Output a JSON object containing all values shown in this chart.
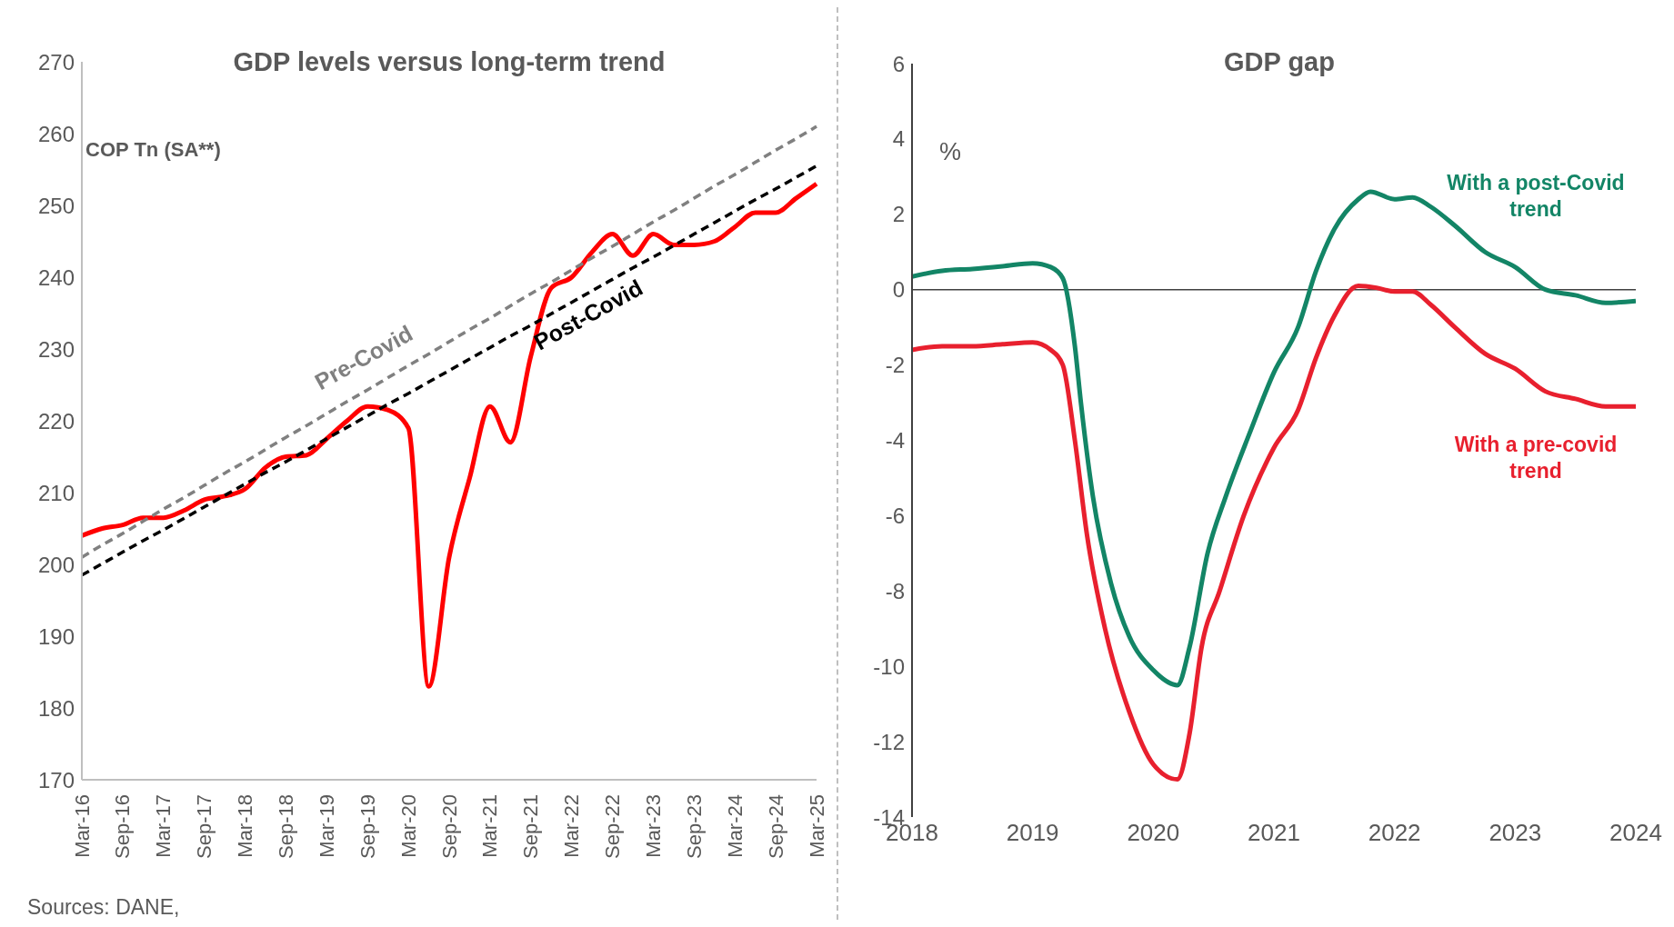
{
  "chart_data": [
    {
      "type": "line",
      "title": "GDP levels versus long-term trend",
      "ylabel": "COP Tn (SA**)",
      "categories": [
        "Mar-16",
        null,
        "Sep-16",
        null,
        "Mar-17",
        null,
        "Sep-17",
        null,
        "Mar-18",
        null,
        "Sep-18",
        null,
        "Mar-19",
        null,
        "Sep-19",
        null,
        "Mar-20",
        null,
        "Sep-20",
        null,
        "Mar-21",
        null,
        "Sep-21",
        null,
        "Mar-22",
        null,
        "Sep-22",
        null,
        "Mar-23",
        null,
        "Sep-23",
        null,
        "Mar-24",
        null,
        "Sep-24",
        null,
        "Mar-25"
      ],
      "series": [
        {
          "color": "#ff0000",
          "values": [
            204,
            205,
            205.5,
            206.5,
            206.5,
            207.5,
            209,
            209.5,
            210.5,
            213.5,
            215,
            215.2,
            217.5,
            220,
            222,
            221.5,
            219,
            183,
            201,
            212,
            222,
            217,
            229,
            238.5,
            240,
            243.5,
            246,
            243,
            246,
            244.5,
            244.5,
            245,
            247,
            249,
            249,
            251,
            253
          ]
        },
        {
          "name": "Pre-Covid",
          "color": "#808080",
          "line_style": "dashed",
          "values": [
            201,
            202.7,
            204.3,
            206,
            207.7,
            209.3,
            211,
            212.7,
            214.3,
            216,
            217.7,
            219.3,
            221,
            222.7,
            224.3,
            226,
            227.7,
            229.3,
            231,
            232.7,
            234.3,
            236,
            237.7,
            239.3,
            241,
            242.7,
            244.3,
            246,
            247.7,
            249.3,
            251,
            252.7,
            254.3,
            256,
            257.7,
            259.3,
            261
          ]
        },
        {
          "name": "Post-Covid",
          "color": "#000000",
          "line_style": "dashed",
          "values": [
            198.5,
            200.1,
            201.7,
            203.3,
            204.8,
            206.4,
            208,
            209.6,
            211.2,
            212.8,
            214.3,
            215.9,
            217.5,
            219.1,
            220.7,
            222.3,
            223.8,
            225.4,
            227,
            228.6,
            230.2,
            231.8,
            233.3,
            234.9,
            236.5,
            238.1,
            239.7,
            241.3,
            242.8,
            244.4,
            246,
            247.6,
            249.2,
            250.8,
            252.3,
            253.9,
            255.5
          ]
        }
      ],
      "ylim": [
        170,
        270
      ],
      "yticks": [
        170,
        180,
        190,
        200,
        210,
        220,
        230,
        240,
        250,
        260,
        270
      ],
      "grid": false,
      "annotations": [
        "Sources: DANE,"
      ]
    },
    {
      "type": "line",
      "title": "GDP gap",
      "ylabel": "%",
      "xlim": [
        2018,
        2024
      ],
      "xticks": [
        2018,
        2019,
        2020,
        2021,
        2022,
        2023,
        2024
      ],
      "ylim": [
        -14,
        6
      ],
      "yticks": [
        -14,
        -12,
        -10,
        -8,
        -6,
        -4,
        -2,
        0,
        2,
        4,
        6
      ],
      "grid": false,
      "ref_lines": [
        {
          "axis": "y",
          "value": 0,
          "color": "#404040"
        }
      ],
      "series": [
        {
          "name": "With a post-Covid trend",
          "color": "#138566",
          "x": [
            2018,
            2018.25,
            2018.5,
            2018.75,
            2019,
            2019.15,
            2019.25,
            2019.35,
            2019.4,
            2019.5,
            2019.65,
            2019.8,
            2020,
            2020.2,
            2020.3,
            2020.45,
            2020.6,
            2020.8,
            2021,
            2021.2,
            2021.35,
            2021.5,
            2021.7,
            2021.8,
            2022,
            2022.15,
            2022.3,
            2022.5,
            2022.75,
            2023,
            2023.25,
            2023.5,
            2023.75,
            2024
          ],
          "values": [
            0.35,
            0.5,
            0.55,
            0.62,
            0.7,
            0.6,
            0.3,
            -1.5,
            -3,
            -5.5,
            -7.8,
            -9.2,
            -10.1,
            -10.5,
            -9.5,
            -7,
            -5.5,
            -3.8,
            -2.2,
            -1,
            0.5,
            1.6,
            2.4,
            2.6,
            2.4,
            2.45,
            2.2,
            1.7,
            1,
            0.6,
            0,
            -0.15,
            -0.35,
            -0.3
          ]
        },
        {
          "name": "With a pre-covid trend",
          "color": "#e8202e",
          "x": [
            2018,
            2018.25,
            2018.5,
            2018.75,
            2019,
            2019.15,
            2019.25,
            2019.35,
            2019.45,
            2019.6,
            2019.8,
            2020,
            2020.2,
            2020.3,
            2020.4,
            2020.55,
            2020.75,
            2021,
            2021.2,
            2021.35,
            2021.5,
            2021.7,
            2021.85,
            2022,
            2022.15,
            2022.3,
            2022.5,
            2022.75,
            2023,
            2023.25,
            2023.5,
            2023.75,
            2024
          ],
          "values": [
            -1.6,
            -1.5,
            -1.5,
            -1.45,
            -1.4,
            -1.6,
            -2,
            -4,
            -6.5,
            -9,
            -11.2,
            -12.6,
            -13,
            -11.8,
            -9.5,
            -8,
            -6,
            -4.2,
            -3.2,
            -1.8,
            -0.7,
            0.1,
            0.05,
            -0.05,
            -0.05,
            -0.4,
            -1,
            -1.7,
            -2.1,
            -2.7,
            -2.9,
            -3.1,
            -3.1
          ]
        }
      ]
    }
  ]
}
